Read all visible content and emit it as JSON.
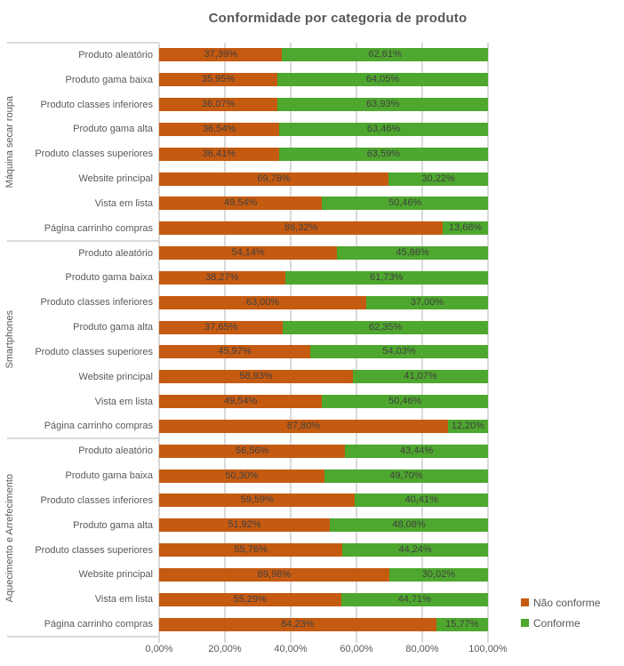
{
  "chart_data": {
    "type": "bar",
    "orientation": "horizontal",
    "stacked": true,
    "title": "Conformidade por categoria de produto",
    "xlabel": "",
    "ylabel": "",
    "xlim": [
      0,
      100
    ],
    "grid": true,
    "legend_position": "bottom-right",
    "x_tick_values": [
      0,
      20,
      40,
      60,
      80,
      100
    ],
    "x_ticks": [
      "0,00%",
      "20,00%",
      "40,00%",
      "60,00%",
      "80,00%",
      "100,00%"
    ],
    "series": [
      {
        "name": "Não conforme",
        "color": "#C55A11"
      },
      {
        "name": "Conforme",
        "color": "#4EA72E"
      }
    ],
    "categories_per_group": [
      "Produto aleatório",
      "Produto gama baixa",
      "Produto classes inferiores",
      "Produto gama alta",
      "Produto classes superiores",
      "Website principal",
      "Vista em lista",
      "Página carrinho compras"
    ],
    "groups": [
      {
        "name": "Máquina secar roupa",
        "nao_conforme": [
          37.39,
          35.95,
          36.07,
          36.54,
          36.41,
          69.78,
          49.54,
          86.32
        ],
        "conforme": [
          62.61,
          64.05,
          63.93,
          63.46,
          63.59,
          30.22,
          50.46,
          13.68
        ]
      },
      {
        "name": "Smartphones",
        "nao_conforme": [
          54.14,
          38.27,
          63.0,
          37.65,
          45.97,
          58.93,
          49.54,
          87.8
        ],
        "conforme": [
          45.86,
          61.73,
          37.0,
          62.35,
          54.03,
          41.07,
          50.46,
          12.2
        ]
      },
      {
        "name": "Aquecimento e Arrefecimento",
        "nao_conforme": [
          56.56,
          50.3,
          59.59,
          51.92,
          55.76,
          69.98,
          55.29,
          84.23
        ],
        "conforme": [
          43.44,
          49.7,
          40.41,
          48.08,
          44.24,
          30.02,
          44.71,
          15.77
        ]
      }
    ]
  },
  "colors": {
    "grid": "#D9D9D9",
    "axis_text": "#595959",
    "title_text": "#595959",
    "bar_label": "#404040",
    "background": "#FFFFFF"
  }
}
